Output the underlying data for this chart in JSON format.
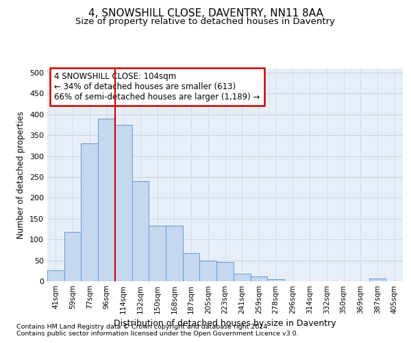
{
  "title_line1": "4, SNOWSHILL CLOSE, DAVENTRY, NN11 8AA",
  "title_line2": "Size of property relative to detached houses in Daventry",
  "xlabel": "Distribution of detached houses by size in Daventry",
  "ylabel": "Number of detached properties",
  "bar_labels": [
    "41sqm",
    "59sqm",
    "77sqm",
    "96sqm",
    "114sqm",
    "132sqm",
    "150sqm",
    "168sqm",
    "187sqm",
    "205sqm",
    "223sqm",
    "241sqm",
    "259sqm",
    "278sqm",
    "296sqm",
    "314sqm",
    "332sqm",
    "350sqm",
    "369sqm",
    "387sqm",
    "405sqm"
  ],
  "bar_heights": [
    27,
    119,
    330,
    390,
    375,
    240,
    133,
    133,
    68,
    50,
    46,
    18,
    12,
    5,
    0,
    0,
    0,
    0,
    0,
    6,
    0
  ],
  "bar_color": "#c5d8f0",
  "bar_edge_color": "#6899cc",
  "red_line_bin_index": 3,
  "annotation_text_line1": "4 SNOWSHILL CLOSE: 104sqm",
  "annotation_text_line2": "← 34% of detached houses are smaller (613)",
  "annotation_text_line3": "66% of semi-detached houses are larger (1,189) →",
  "annotation_box_facecolor": "#ffffff",
  "annotation_box_edgecolor": "#cc0000",
  "ylim": [
    0,
    510
  ],
  "yticks": [
    0,
    50,
    100,
    150,
    200,
    250,
    300,
    350,
    400,
    450,
    500
  ],
  "grid_color": "#c8d4e8",
  "background_color": "#e8eef8",
  "footnote1": "Contains HM Land Registry data © Crown copyright and database right 2024.",
  "footnote2": "Contains public sector information licensed under the Open Government Licence v3.0."
}
